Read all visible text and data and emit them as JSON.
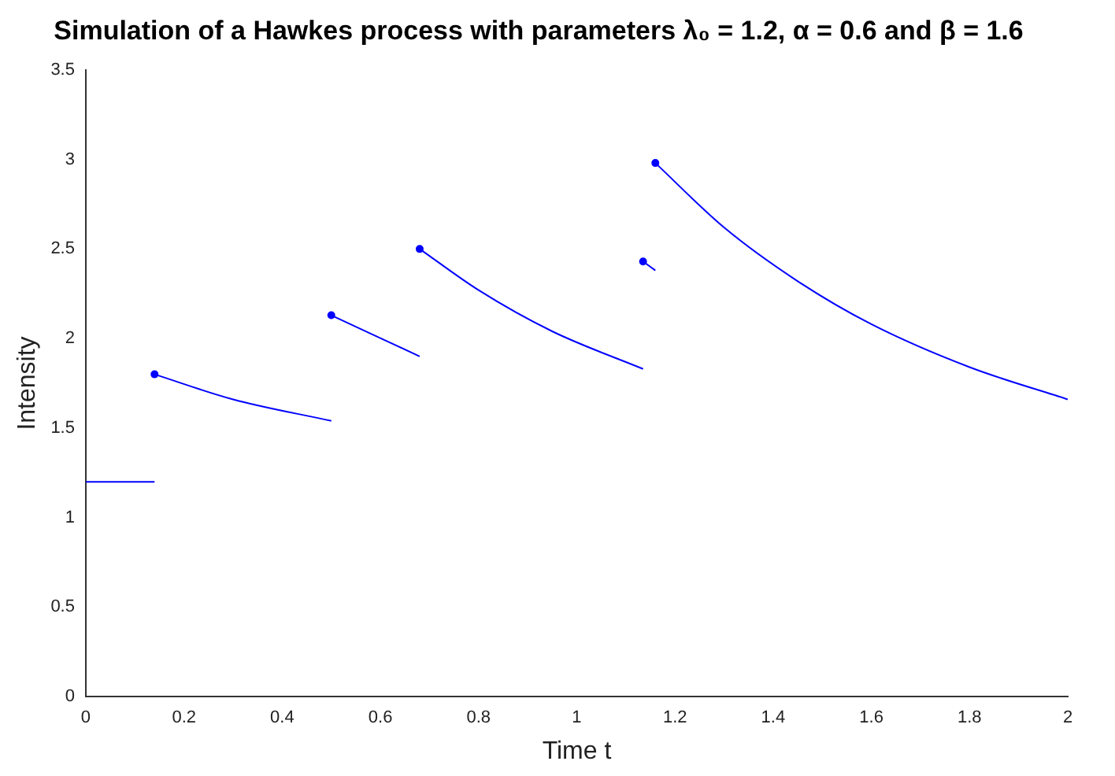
{
  "chart_data": {
    "type": "line",
    "title": "Simulation of a Hawkes process with parameters λ₀ = 1.2, α = 0.6 and β = 1.6",
    "xlabel": "Time t",
    "ylabel": "Intensity",
    "xlim": [
      0,
      2
    ],
    "ylim": [
      0,
      3.5
    ],
    "xticks": [
      0,
      0.2,
      0.4,
      0.6,
      0.8,
      1,
      1.2,
      1.4,
      1.6,
      1.8,
      2
    ],
    "yticks": [
      0,
      0.5,
      1,
      1.5,
      2,
      2.5,
      3,
      3.5
    ],
    "series": [
      {
        "type": "line",
        "color": "#0000ff",
        "marker": "none",
        "x": [
          0,
          0.14
        ],
        "values": [
          1.2,
          1.2
        ]
      },
      {
        "type": "line",
        "color": "#0000ff",
        "marker": "none",
        "x": [
          0.14,
          0.3,
          0.5
        ],
        "values": [
          1.8,
          1.66,
          1.54
        ]
      },
      {
        "type": "line",
        "color": "#0000ff",
        "marker": "none",
        "x": [
          0.5,
          0.68
        ],
        "values": [
          2.13,
          1.9
        ]
      },
      {
        "type": "line",
        "color": "#0000ff",
        "marker": "none",
        "x": [
          0.68,
          0.8,
          0.95,
          1.135
        ],
        "values": [
          2.5,
          2.27,
          2.04,
          1.83
        ]
      },
      {
        "type": "line",
        "color": "#0000ff",
        "marker": "none",
        "x": [
          1.135,
          1.16
        ],
        "values": [
          2.43,
          2.38
        ]
      },
      {
        "type": "line",
        "color": "#0000ff",
        "marker": "none",
        "x": [
          1.16,
          1.3,
          1.45,
          1.6,
          1.8,
          2
        ],
        "values": [
          2.98,
          2.62,
          2.32,
          2.08,
          1.84,
          1.66
        ]
      },
      {
        "type": "scatter",
        "color": "#0000ff",
        "marker": "circle",
        "x": [
          0.14,
          0.5,
          0.68,
          1.135,
          1.16
        ],
        "values": [
          1.8,
          2.13,
          2.5,
          2.43,
          2.98
        ]
      }
    ]
  }
}
